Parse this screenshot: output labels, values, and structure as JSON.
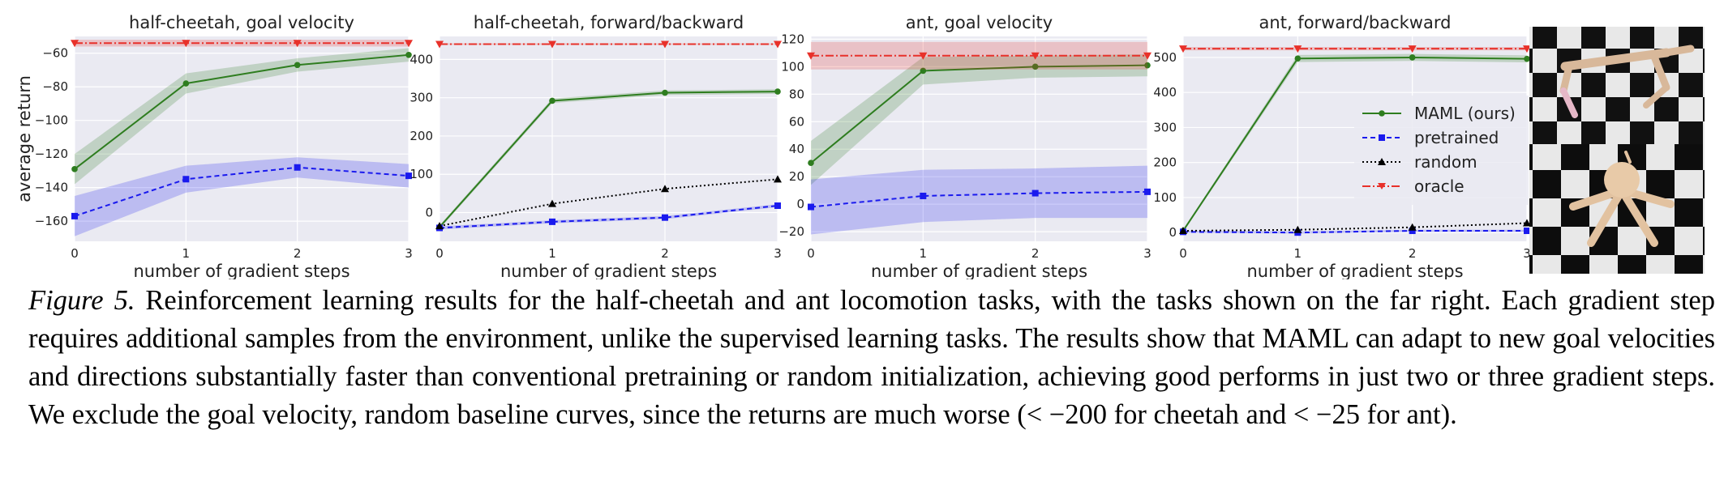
{
  "figure": {
    "label": "Figure 5.",
    "caption_lines": [
      "Reinforcement learning results for the half-cheetah and ant locomotion tasks, with the tasks shown on the far right.  Each",
      "gradient step requires additional samples from the environment, unlike the supervised learning tasks. The results show that MAML can",
      "adapt to new goal velocities and directions substantially faster than conventional pretraining or random initialization, achieving good",
      "performs in just two or three gradient steps.  We exclude the goal velocity, random baseline curves, since the returns are much worse",
      "(< −200 for cheetah and < −25 for ant)."
    ]
  },
  "colors": {
    "maml": "#2e7d1f",
    "pretrained": "#1a1aee",
    "random": "#000000",
    "oracle": "#e8312a",
    "plot_bg": "#eaeaf2",
    "grid": "#ffffff"
  },
  "legend": {
    "placement": "center-right of fourth panel",
    "entries": [
      "MAML (ours)",
      "pretrained",
      "random",
      "oracle"
    ]
  },
  "image_panel": {
    "description_icon": "ant-and-cheetah-render"
  },
  "chart_data": [
    {
      "type": "line",
      "title": "half-cheetah, goal velocity",
      "xlabel": "number of gradient steps",
      "ylabel": "average return",
      "x": [
        0,
        1,
        2,
        3
      ],
      "xticks": [
        "0",
        "1",
        "2",
        "3"
      ],
      "yticks": [
        -160,
        -140,
        -120,
        -100,
        -80,
        -60
      ],
      "ylim": [
        -172,
        -50
      ],
      "grid": true,
      "series": [
        {
          "name": "MAML (ours)",
          "key": "maml",
          "values": [
            -129,
            -78,
            -67,
            -61
          ],
          "band": [
            9,
            6,
            4,
            4
          ]
        },
        {
          "name": "pretrained",
          "key": "pretrained",
          "values": [
            -157,
            -135,
            -128,
            -133
          ],
          "band": [
            12,
            8,
            6,
            7
          ]
        },
        {
          "name": "oracle",
          "key": "oracle",
          "values": [
            -54,
            -54,
            -54,
            -54
          ],
          "band": [
            2,
            2,
            2,
            2
          ]
        }
      ]
    },
    {
      "type": "line",
      "title": "half-cheetah, forward/backward",
      "xlabel": "number of gradient steps",
      "ylabel": "",
      "x": [
        0,
        1,
        2,
        3
      ],
      "xticks": [
        "0",
        "1",
        "2",
        "3"
      ],
      "yticks": [
        0,
        100,
        200,
        300,
        400
      ],
      "ylim": [
        -75,
        460
      ],
      "grid": true,
      "series": [
        {
          "name": "MAML (ours)",
          "key": "maml",
          "values": [
            -38,
            292,
            313,
            316
          ],
          "band": [
            5,
            6,
            6,
            6
          ]
        },
        {
          "name": "pretrained",
          "key": "pretrained",
          "values": [
            -40,
            -24,
            -13,
            18
          ],
          "band": [
            4,
            4,
            4,
            4
          ]
        },
        {
          "name": "random",
          "key": "random",
          "values": [
            -35,
            23,
            62,
            87
          ],
          "band": [
            0,
            0,
            0,
            0
          ]
        },
        {
          "name": "oracle",
          "key": "oracle",
          "values": [
            440,
            440,
            440,
            440
          ],
          "band": [
            2,
            2,
            2,
            2
          ]
        }
      ]
    },
    {
      "type": "line",
      "title": "ant, goal velocity",
      "xlabel": "number of gradient steps",
      "ylabel": "",
      "x": [
        0,
        1,
        2,
        3
      ],
      "xticks": [
        "0",
        "1",
        "2",
        "3"
      ],
      "yticks": [
        -20,
        0,
        20,
        40,
        60,
        80,
        100,
        120
      ],
      "ylim": [
        -27,
        122
      ],
      "grid": true,
      "series": [
        {
          "name": "MAML (ours)",
          "key": "maml",
          "values": [
            30,
            97,
            100,
            101
          ],
          "band": [
            16,
            10,
            8,
            8
          ]
        },
        {
          "name": "pretrained",
          "key": "pretrained",
          "values": [
            -2,
            6,
            8,
            9
          ],
          "band": [
            20,
            19,
            18,
            19
          ]
        },
        {
          "name": "oracle",
          "key": "oracle",
          "values": [
            108,
            108,
            108,
            108
          ],
          "band": [
            10,
            10,
            10,
            10
          ]
        }
      ]
    },
    {
      "type": "line",
      "title": "ant, forward/backward",
      "xlabel": "number of gradient steps",
      "ylabel": "",
      "x": [
        0,
        1,
        2,
        3
      ],
      "xticks": [
        "0",
        "1",
        "2",
        "3"
      ],
      "yticks": [
        0,
        100,
        200,
        300,
        400,
        500
      ],
      "ylim": [
        -25,
        560
      ],
      "grid": true,
      "series": [
        {
          "name": "MAML (ours)",
          "key": "maml",
          "values": [
            5,
            497,
            500,
            496
          ],
          "band": [
            4,
            10,
            10,
            10
          ]
        },
        {
          "name": "pretrained",
          "key": "pretrained",
          "values": [
            2,
            0,
            5,
            5
          ],
          "band": [
            3,
            3,
            3,
            3
          ]
        },
        {
          "name": "random",
          "key": "random",
          "values": [
            5,
            8,
            15,
            27
          ],
          "band": [
            0,
            0,
            0,
            0
          ]
        },
        {
          "name": "oracle",
          "key": "oracle",
          "values": [
            525,
            525,
            525,
            525
          ],
          "band": [
            5,
            5,
            5,
            5
          ]
        }
      ]
    }
  ]
}
